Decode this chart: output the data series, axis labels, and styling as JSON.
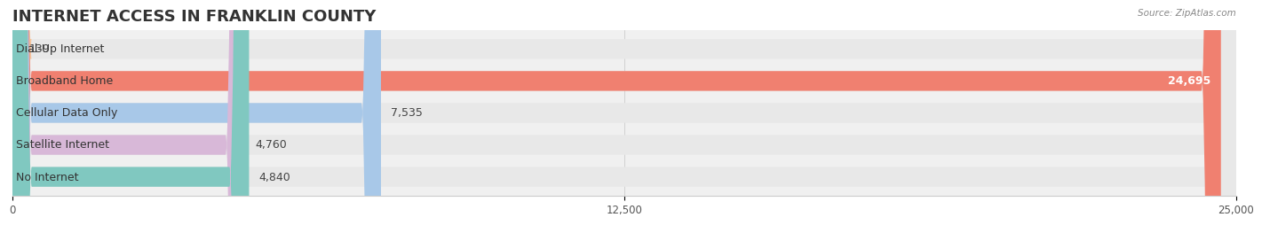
{
  "title": "INTERNET ACCESS IN FRANKLIN COUNTY",
  "source": "Source: ZipAtlas.com",
  "categories": [
    "Dial-Up Internet",
    "Broadband Home",
    "Cellular Data Only",
    "Satellite Internet",
    "No Internet"
  ],
  "values": [
    139,
    24695,
    7535,
    4760,
    4840
  ],
  "bar_colors": [
    "#f5c8a0",
    "#f08070",
    "#a8c8e8",
    "#d8b8d8",
    "#80c8c0"
  ],
  "background_color": "#ffffff",
  "xlim": [
    0,
    25000
  ],
  "xticks": [
    0,
    12500,
    25000
  ],
  "xtick_labels": [
    "0",
    "12,500",
    "25,000"
  ],
  "title_fontsize": 13,
  "label_fontsize": 9,
  "value_fontsize": 9
}
